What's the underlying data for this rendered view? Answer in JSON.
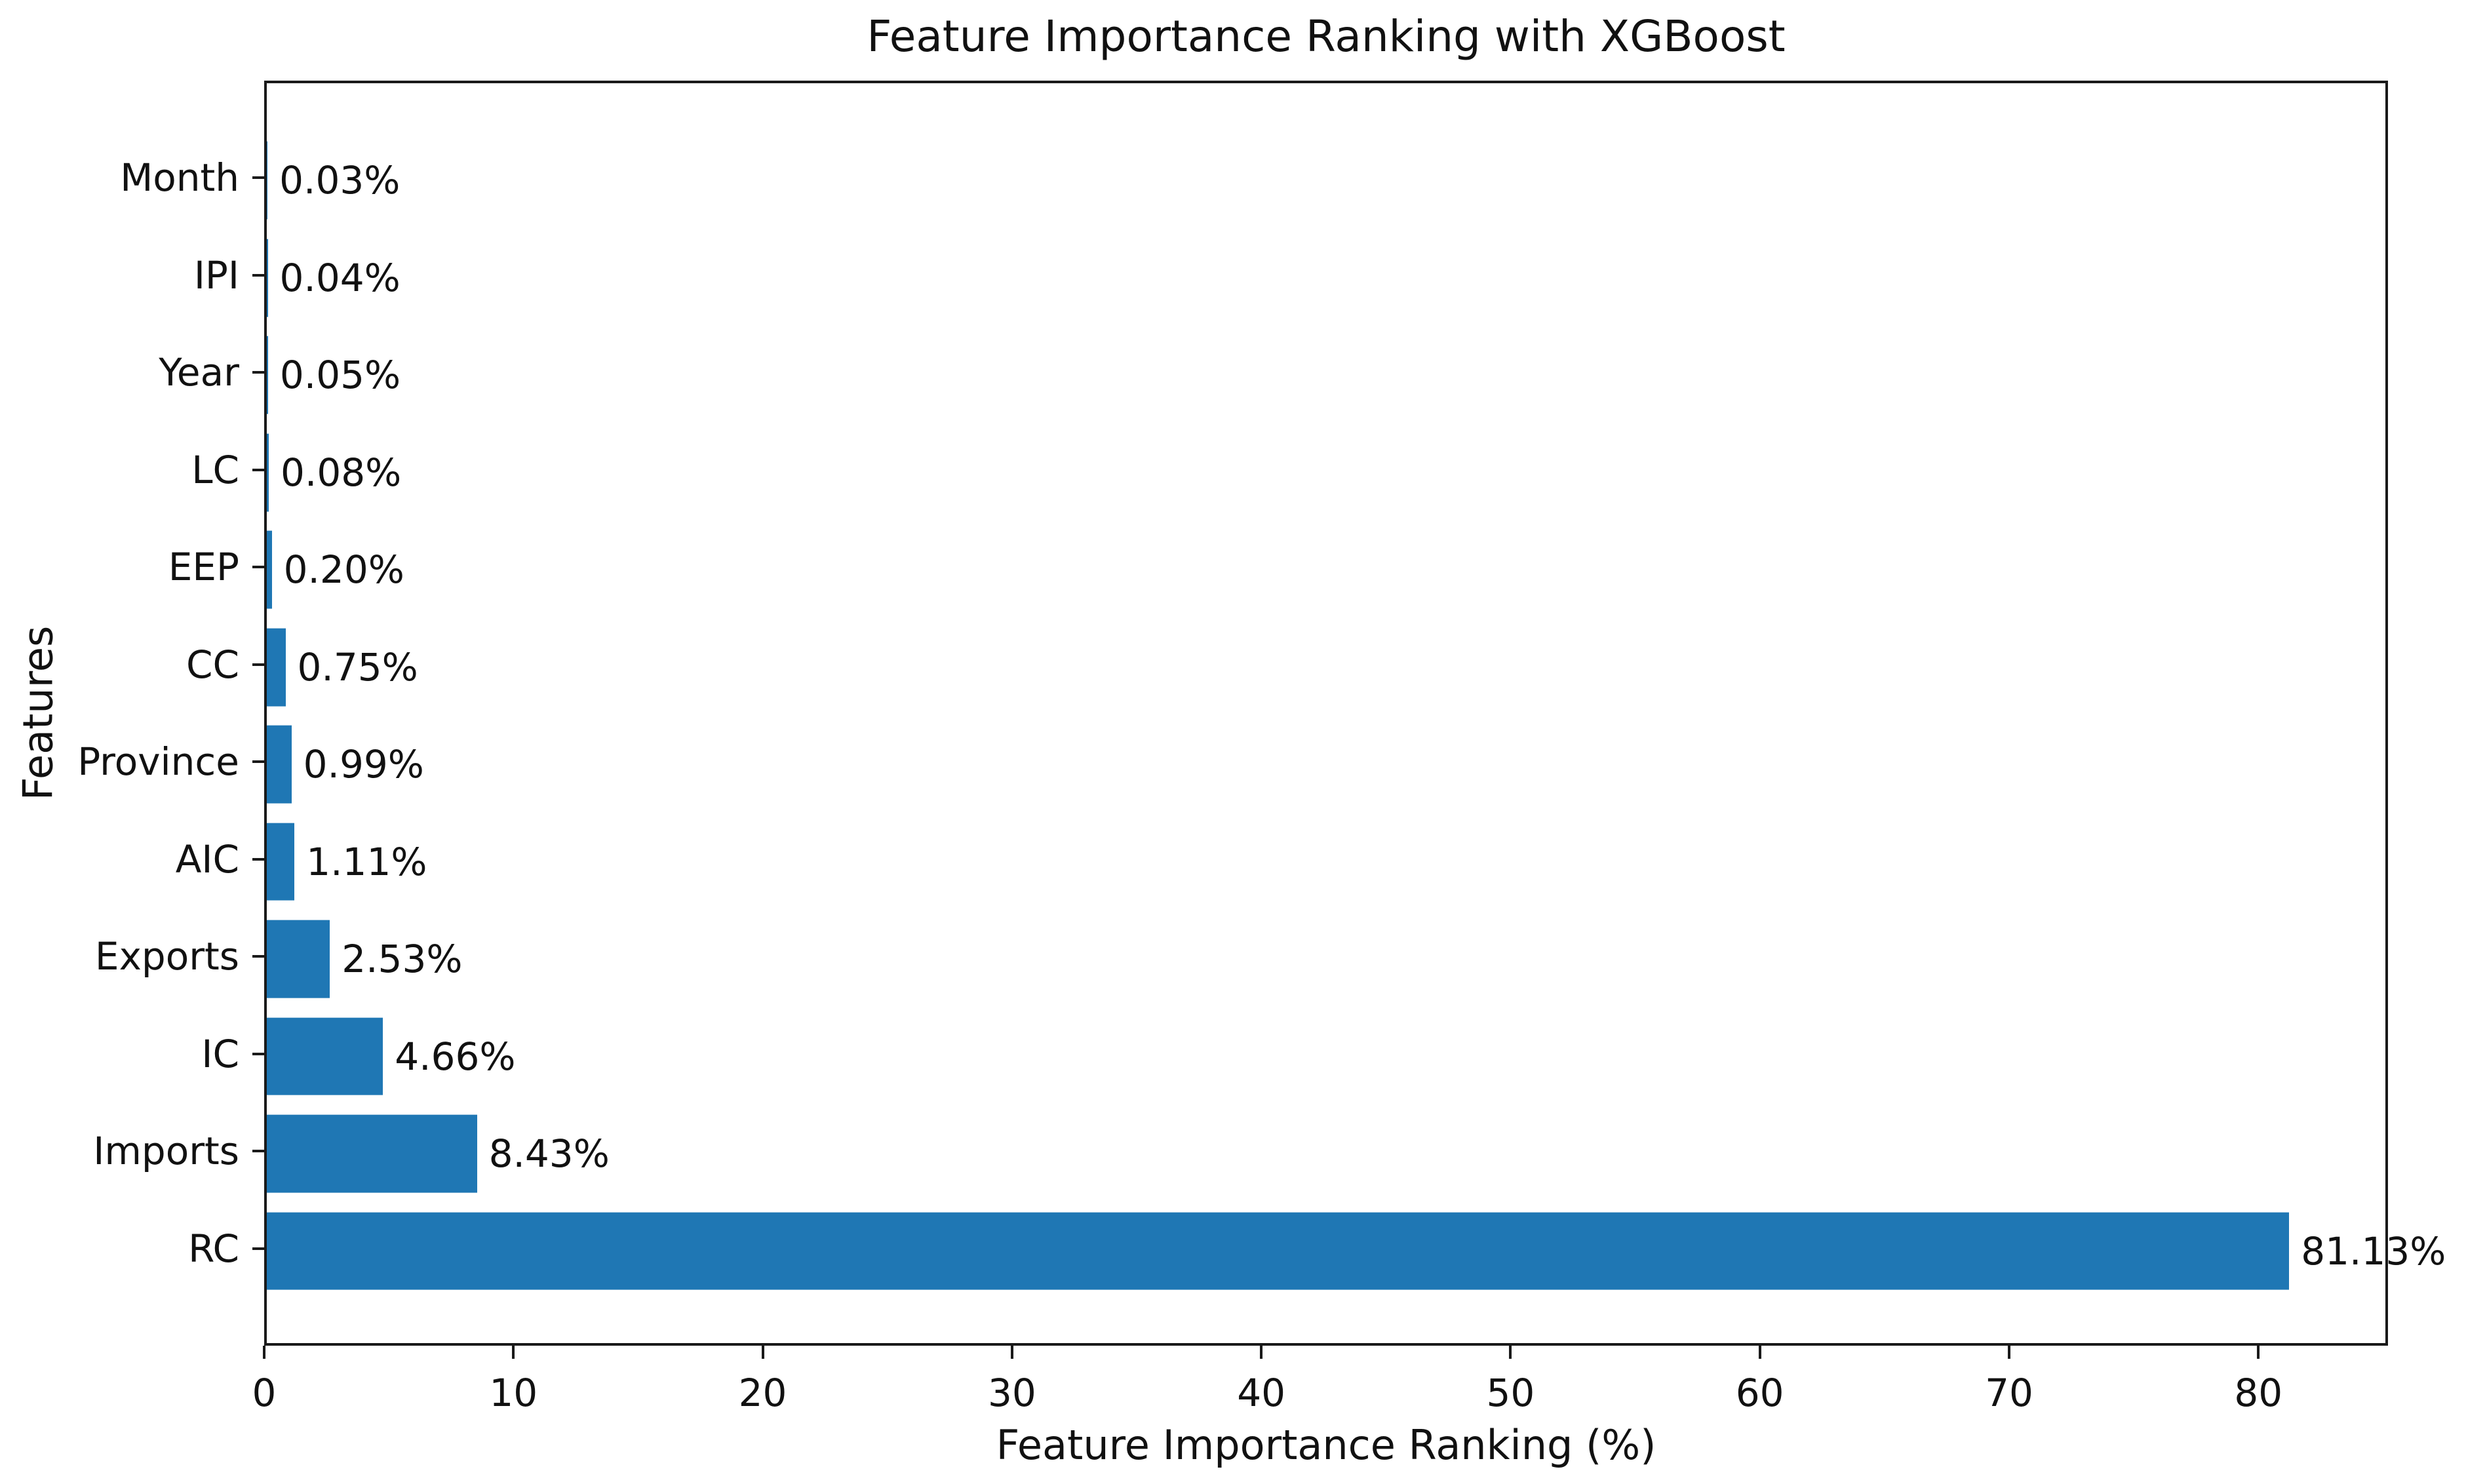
{
  "figure": {
    "title": "Feature Importance Ranking with XGBoost",
    "xlabel": "Feature Importance Ranking (%)",
    "ylabel": "Features"
  },
  "chart_data": {
    "type": "bar",
    "orientation": "horizontal",
    "title": "Feature Importance Ranking with XGBoost",
    "xlabel": "Feature Importance Ranking (%)",
    "ylabel": "Features",
    "categories": [
      "Month",
      "IPI",
      "Year",
      "LC",
      "EEP",
      "CC",
      "Province",
      "AIC",
      "Exports",
      "IC",
      "Imports",
      "RC"
    ],
    "values": [
      0.03,
      0.04,
      0.05,
      0.08,
      0.2,
      0.75,
      0.99,
      1.11,
      2.53,
      4.66,
      8.43,
      81.13
    ],
    "value_labels": [
      "0.03%",
      "0.04%",
      "0.05%",
      "0.08%",
      "0.20%",
      "0.75%",
      "0.99%",
      "1.11%",
      "2.53%",
      "4.66%",
      "8.43%",
      "81.13%"
    ],
    "category_order": "top-to-bottom",
    "xticks": [
      0,
      10,
      20,
      30,
      40,
      50,
      60,
      70,
      80
    ],
    "xlim": [
      0,
      85.2
    ],
    "bar_color": "#1f77b4",
    "spine_color": "#1a1a1a",
    "grid": false,
    "legend_position": "none"
  }
}
